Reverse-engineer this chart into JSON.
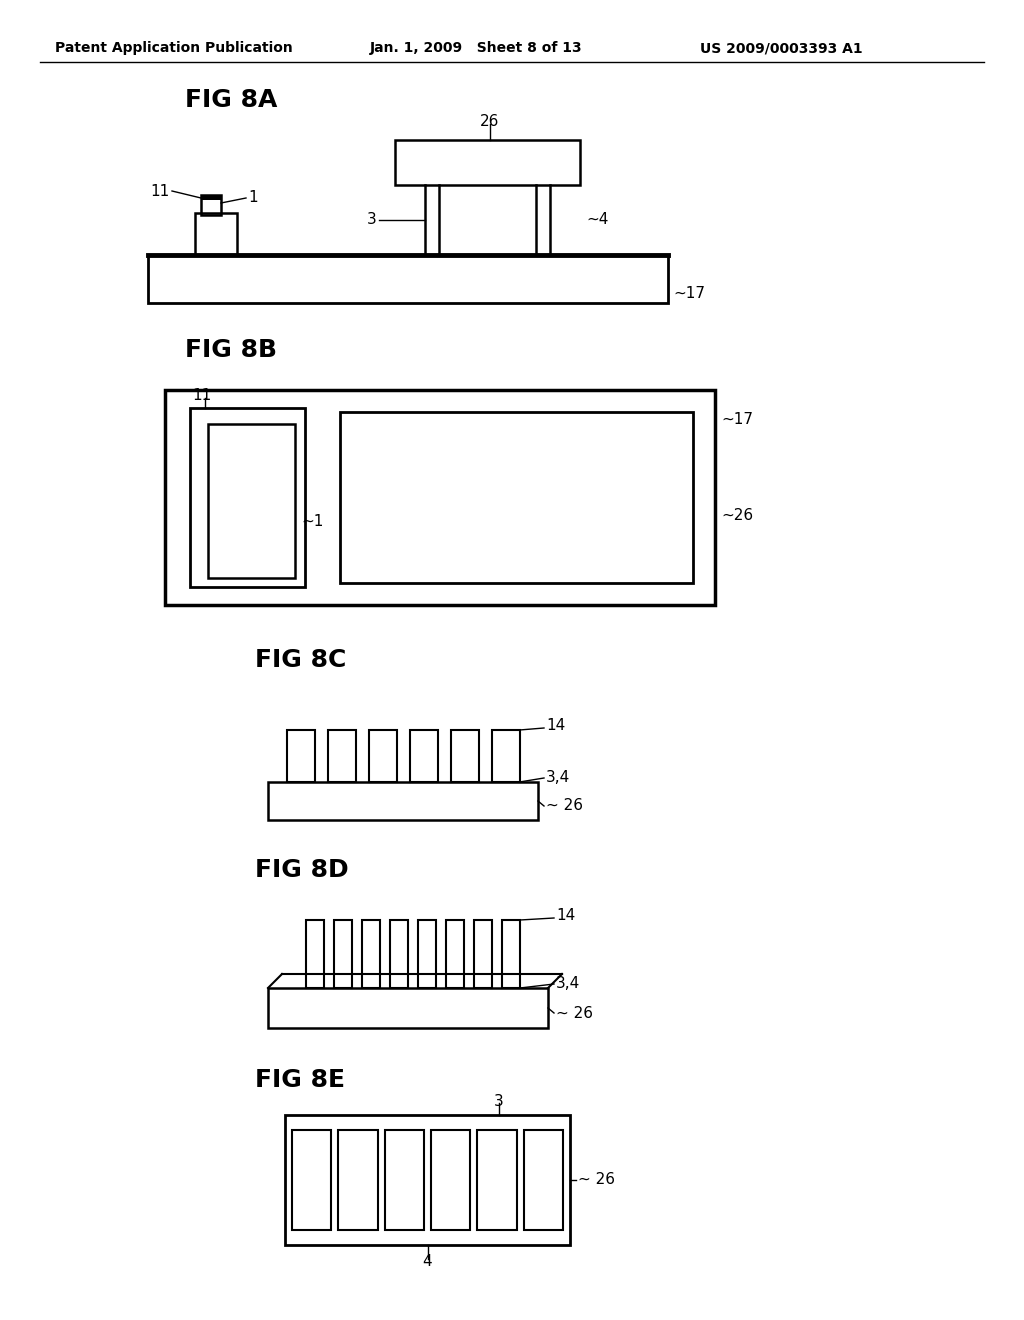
{
  "bg_color": "#ffffff",
  "line_color": "#000000",
  "header_left": "Patent Application Publication",
  "header_center": "Jan. 1, 2009   Sheet 8 of 13",
  "header_right": "US 2009/0003393 A1"
}
